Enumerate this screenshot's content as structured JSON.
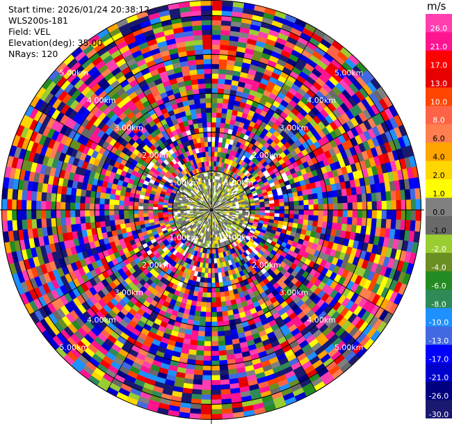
{
  "info": {
    "start_time": "Start time: 2026/01/24 20:38:12",
    "instrument": "WLS200s-181",
    "field": "Field: VEL",
    "elevation": "Elevation(deg): 35.00",
    "nrays": "NRays: 120"
  },
  "colorbar": {
    "unit": "m/s",
    "ticks": [
      "26.0",
      "21.0",
      "17.0",
      "13.0",
      "10.0",
      "8.0",
      "6.0",
      "4.0",
      "2.0",
      "1.0",
      "0.0",
      "-1.0",
      "-2.0",
      "-4.0",
      "-6.0",
      "-8.0",
      "-10.0",
      "-13.0",
      "-17.0",
      "-21.0",
      "-26.0",
      "-30.0"
    ],
    "colors": [
      "#ff3fb0",
      "#ff1490",
      "#ff0000",
      "#e60000",
      "#ff4500",
      "#ff6347",
      "#ff7f50",
      "#ffa500",
      "#ffd700",
      "#ffff00",
      "#808080",
      "#696969",
      "#9acd32",
      "#6b8e23",
      "#228b22",
      "#2e8b57",
      "#1e90ff",
      "#4169e1",
      "#0000ff",
      "#0000cd",
      "#000080",
      "#191970"
    ]
  },
  "chart_data": {
    "type": "ppi",
    "field": "VEL",
    "unit": "m/s",
    "nrays": 120,
    "elevation_deg": 35.0,
    "value_range": [
      -30.0,
      26.0
    ],
    "range_rings": [
      {
        "range_label": "1.00km"
      },
      {
        "range_label": "2.00km"
      },
      {
        "range_label": "3.00km"
      },
      {
        "range_label": "4.00km"
      },
      {
        "range_label": "5.00km"
      }
    ],
    "ring_label_values_km": [
      1,
      2,
      3,
      4,
      5
    ],
    "max_range_km": 5.4,
    "inner_region": {
      "max_range_km": 1.0,
      "dominant_values_ms": [
        0.0,
        -1.0,
        2.0,
        1.0
      ]
    }
  }
}
